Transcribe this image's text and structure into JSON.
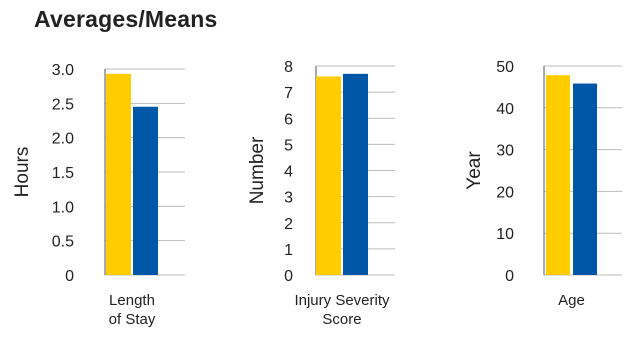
{
  "title": "Averages/Means",
  "colors": {
    "series_a": "#FFCC00",
    "series_b": "#0057A8",
    "grid": "#bbbbbb",
    "axis": "#555555"
  },
  "chart_data": [
    {
      "type": "bar",
      "ylabel": "Hours",
      "xlabel_lines": [
        "Length",
        "of Stay"
      ],
      "ylim": [
        0,
        3.0
      ],
      "yticks": [
        "0",
        "0.5",
        "1.0",
        "1.5",
        "2.0",
        "2.5",
        "3.0"
      ],
      "ytick_values": [
        0,
        0.5,
        1.0,
        1.5,
        2.0,
        2.5,
        3.0
      ],
      "grid": true,
      "values": [
        2.93,
        2.45
      ]
    },
    {
      "type": "bar",
      "ylabel": "Number",
      "xlabel_lines": [
        "Injury Severity",
        "Score"
      ],
      "ylim": [
        0,
        8
      ],
      "yticks": [
        "0",
        "1",
        "2",
        "3",
        "4",
        "5",
        "6",
        "7",
        "8"
      ],
      "ytick_values": [
        0,
        1,
        2,
        3,
        4,
        5,
        6,
        7,
        8
      ],
      "grid": true,
      "values": [
        7.6,
        7.7
      ]
    },
    {
      "type": "bar",
      "ylabel": "Year",
      "xlabel_lines": [
        "Age"
      ],
      "ylim": [
        0,
        50
      ],
      "yticks": [
        "0",
        "10",
        "20",
        "30",
        "40",
        "50"
      ],
      "ytick_values": [
        0,
        10,
        20,
        30,
        40,
        50
      ],
      "grid": true,
      "values": [
        47.8,
        45.8
      ]
    }
  ]
}
